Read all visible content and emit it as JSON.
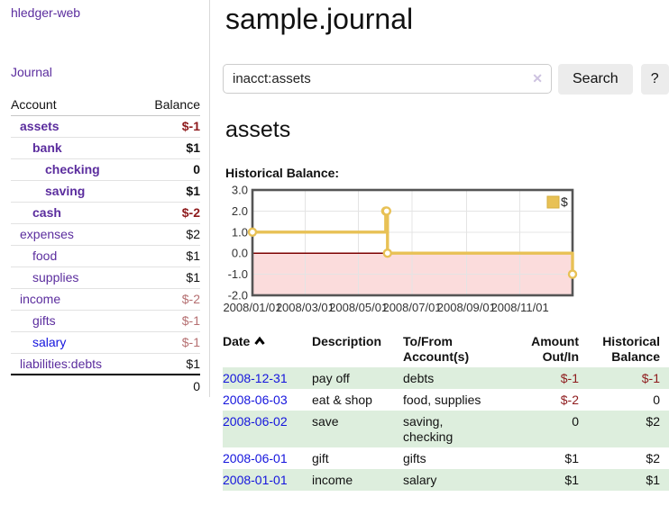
{
  "app": {
    "brand": "hledger-web",
    "nav_journal": "Journal"
  },
  "sidebar": {
    "columns": {
      "account": "Account",
      "balance": "Balance"
    },
    "accounts": [
      {
        "name": "assets",
        "balance": "$-1",
        "indent": 1,
        "bold": true,
        "balance_tone": "negative-strong"
      },
      {
        "name": "bank",
        "balance": "$1",
        "indent": 2,
        "bold": true,
        "balance_tone": "normal"
      },
      {
        "name": "checking",
        "balance": "0",
        "indent": 3,
        "bold": true,
        "balance_tone": "normal"
      },
      {
        "name": "saving",
        "balance": "$1",
        "indent": 3,
        "bold": true,
        "balance_tone": "normal"
      },
      {
        "name": "cash",
        "balance": "$-2",
        "indent": 2,
        "bold": true,
        "balance_tone": "negative-strong"
      },
      {
        "name": "expenses",
        "balance": "$2",
        "indent": 1,
        "bold": false,
        "balance_tone": "normal"
      },
      {
        "name": "food",
        "balance": "$1",
        "indent": 2,
        "bold": false,
        "balance_tone": "normal"
      },
      {
        "name": "supplies",
        "balance": "$1",
        "indent": 2,
        "bold": false,
        "balance_tone": "normal"
      },
      {
        "name": "income",
        "balance": "$-2",
        "indent": 1,
        "bold": false,
        "balance_tone": "negative-soft"
      },
      {
        "name": "gifts",
        "balance": "$-1",
        "indent": 2,
        "bold": false,
        "balance_tone": "negative-soft"
      },
      {
        "name": "salary",
        "balance": "$-1",
        "indent": 2,
        "bold": false,
        "balance_tone": "negative-soft",
        "link_tone": "unvisited"
      },
      {
        "name": "liabilities:debts",
        "balance": "$1",
        "indent": 1,
        "bold": false,
        "balance_tone": "normal"
      }
    ],
    "total": "0"
  },
  "header": {
    "title": "sample.journal"
  },
  "search": {
    "value": "inacct:assets",
    "clear_icon": "✕",
    "button_label": "Search",
    "help_label": "?"
  },
  "account_page": {
    "title": "assets",
    "chart_label": "Historical Balance:"
  },
  "chart_data": {
    "type": "line",
    "title": "Historical Balance",
    "step": true,
    "grid": true,
    "legend": "$",
    "legend_position": "top-right",
    "ylim": [
      -2.0,
      3.0
    ],
    "yticks": [
      "3.0",
      "2.0",
      "1.0",
      "0.0",
      "-1.0",
      "-2.0"
    ],
    "xticks": [
      "2008/01/01",
      "2008/03/01",
      "2008/05/01",
      "2008/07/01",
      "2008/09/01",
      "2008/11/01"
    ],
    "xrange": [
      "2008-01-01",
      "2008-12-31"
    ],
    "series": [
      {
        "name": "$",
        "points": [
          {
            "date": "2008-01-01",
            "value": 1
          },
          {
            "date": "2008-06-01",
            "value": 2
          },
          {
            "date": "2008-06-02",
            "value": 2
          },
          {
            "date": "2008-06-03",
            "value": 0
          },
          {
            "date": "2008-12-31",
            "value": -1
          }
        ]
      }
    ],
    "colors": {
      "line": "#e8c155",
      "marker_fill": "#ffffff",
      "negative_fill": "#fbdcdc",
      "zero_line": "#7d0000",
      "border": "#555555",
      "gridline": "#e4e4e4",
      "tick_text": "#333333"
    }
  },
  "register": {
    "columns": [
      {
        "label": "Date",
        "align": "left",
        "sorted": "asc"
      },
      {
        "label": "Description",
        "align": "left"
      },
      {
        "label": "To/From Account(s)",
        "align": "left"
      },
      {
        "label": "Amount Out/In",
        "align": "right"
      },
      {
        "label": "Historical Balance",
        "align": "right"
      }
    ],
    "rows": [
      {
        "date": "2008-12-31",
        "description": "pay off",
        "accounts": "debts",
        "amount": "$-1",
        "balance": "$-1",
        "amount_negative": true,
        "balance_negative": true,
        "striped": true
      },
      {
        "date": "2008-06-03",
        "description": "eat & shop",
        "accounts": "food, supplies",
        "amount": "$-2",
        "balance": "0",
        "amount_negative": true,
        "balance_negative": false,
        "striped": false
      },
      {
        "date": "2008-06-02",
        "description": "save",
        "accounts": "saving, checking",
        "amount": "0",
        "balance": "$2",
        "amount_negative": false,
        "balance_negative": false,
        "striped": true
      },
      {
        "date": "2008-06-01",
        "description": "gift",
        "accounts": "gifts",
        "amount": "$1",
        "balance": "$2",
        "amount_negative": false,
        "balance_negative": false,
        "striped": false
      },
      {
        "date": "2008-01-01",
        "description": "income",
        "accounts": "salary",
        "amount": "$1",
        "balance": "$1",
        "amount_negative": false,
        "balance_negative": false,
        "striped": true
      }
    ]
  }
}
